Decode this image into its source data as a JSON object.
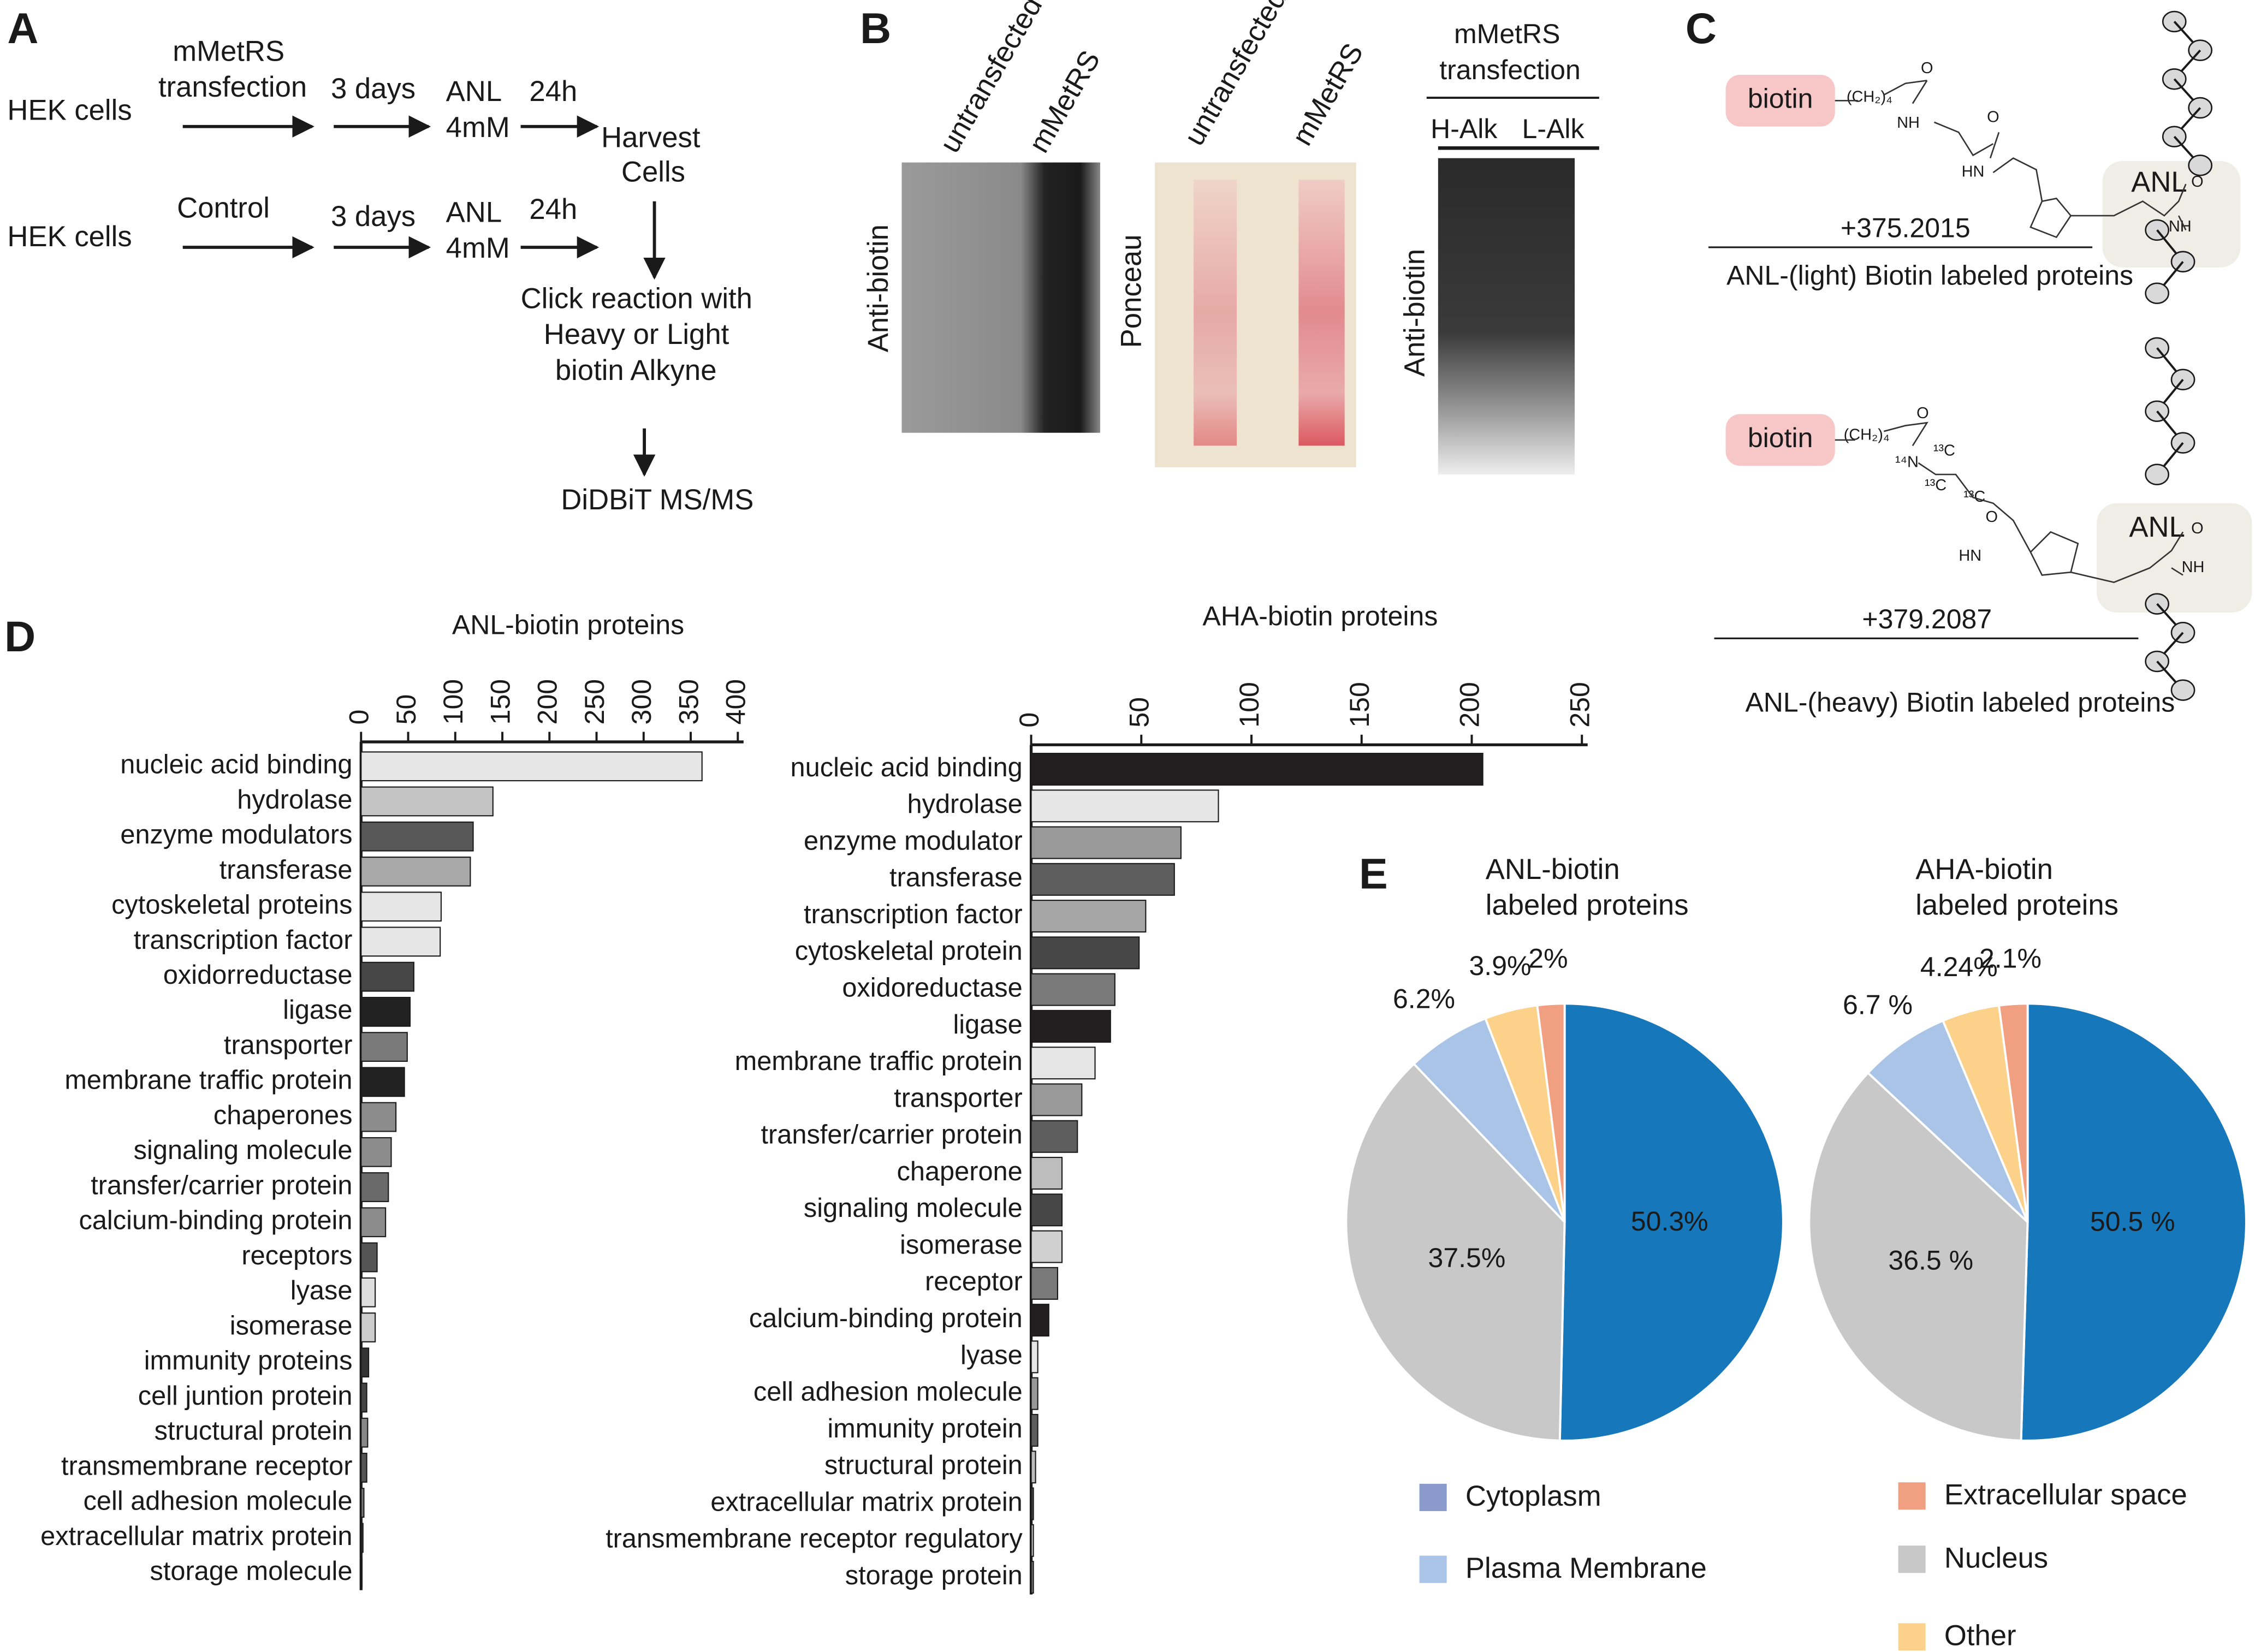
{
  "panel_labels": [
    "A",
    "B",
    "C",
    "D",
    "E"
  ],
  "workflow": {
    "items": [
      "HEK cells",
      "mMetRS",
      "transfection",
      "3 days",
      "ANL",
      "4mM",
      "24h",
      "Harvest",
      "Cells",
      "HEK cells",
      "Control",
      "3 days",
      "ANL",
      "4mM",
      "24h",
      "Click reaction with",
      "Heavy or Light",
      "biotin Alkyne",
      "DiDBiT MS/MS"
    ]
  },
  "blots": {
    "items": [
      "untransfected",
      "mMetRS",
      "Anti-biotin",
      "untransfected",
      "mMetRS",
      "Ponceau",
      "mMetRS",
      "transfection",
      "H-Alk",
      "L-Alk",
      "Anti-biotin"
    ]
  },
  "chemistry": {
    "items": [
      "biotin",
      "ANL",
      "+375.2015",
      "ANL-(light) Biotin labeled proteins",
      "biotin",
      "ANL",
      "+379.2087",
      "ANL-(heavy) Biotin labeled proteins"
    ],
    "atoms": [
      "(CH₂)₄",
      "O",
      "NH",
      "O",
      "HN",
      "O",
      "NH",
      "(CH₂)₄",
      "O",
      "¹⁴N",
      "¹³C",
      "¹³C",
      "¹³C",
      "O",
      "HN",
      "O",
      "NH"
    ]
  },
  "chart_data": [
    {
      "type": "bar",
      "orientation": "horizontal",
      "title": "ANL-biotin proteins",
      "categories": [
        "nucleic acid binding",
        "hydrolase",
        "enzyme modulators",
        "transferase",
        "cytoskeletal proteins",
        "transcription factor",
        "oxidorreductase",
        "ligase",
        "transporter",
        "membrane traffic protein",
        "chaperones",
        "signaling molecule",
        "transfer/carrier protein",
        "calcium-binding protein",
        "receptors",
        "lyase",
        "isomerase",
        "immunity proteins",
        "cell juntion protein",
        "structural protein",
        "transmembrane receptor",
        "cell adhesion molecule",
        "extracellular matrix protein",
        "storage molecule"
      ],
      "values": [
        362,
        140,
        119,
        116,
        85,
        84,
        56,
        52,
        49,
        46,
        37,
        32,
        29,
        26,
        17,
        15,
        15,
        8,
        6,
        7,
        6,
        3,
        2,
        1
      ],
      "colors": [
        "#e6e6e6",
        "#c4c4c4",
        "#585858",
        "#a8a8a8",
        "#e6e6e6",
        "#e6e6e6",
        "#474747",
        "#222222",
        "#7a7a7a",
        "#222222",
        "#8c8c8c",
        "#8c8c8c",
        "#6a6a6a",
        "#8c8c8c",
        "#555555",
        "#dddddd",
        "#cccccc",
        "#333333",
        "#444444",
        "#888888",
        "#555555",
        "#777777",
        "#333333",
        "#333333"
      ],
      "xlim": [
        0,
        400
      ],
      "xticks": [
        0,
        50,
        100,
        150,
        200,
        250,
        300,
        350,
        400
      ]
    },
    {
      "type": "bar",
      "orientation": "horizontal",
      "title": "AHA-biotin proteins",
      "categories": [
        "nucleic acid binding",
        "hydrolase",
        "enzyme modulator",
        "transferase",
        "transcription factor",
        "cytoskeletal protein",
        "oxidoreductase",
        "ligase",
        "membrane traffic protein",
        "transporter",
        "transfer/carrier protein",
        "chaperone",
        "signaling molecule",
        "isomerase",
        "receptor",
        "calcium-binding protein",
        "lyase",
        "cell adhesion molecule",
        "immunity protein",
        "structural protein",
        "extracellular matrix protein",
        "transmembrane receptor regulatory",
        "storage protein"
      ],
      "values": [
        205,
        85,
        68,
        65,
        52,
        49,
        38,
        36,
        29,
        23,
        21,
        14,
        14,
        14,
        12,
        8,
        3,
        3,
        3,
        2,
        1,
        1,
        1
      ],
      "colors": [
        "#231f20",
        "#e6e6e6",
        "#999999",
        "#5e5e5e",
        "#a6a6a6",
        "#474747",
        "#7a7a7a",
        "#231f20",
        "#e6e6e6",
        "#999999",
        "#5e5e5e",
        "#bdbdbd",
        "#474747",
        "#d0d0d0",
        "#7a7a7a",
        "#231f20",
        "#e6e6e6",
        "#999999",
        "#5e5e5e",
        "#bdbdbd",
        "#474747",
        "#d0d0d0",
        "#7a7a7a"
      ],
      "xlim": [
        0,
        250
      ],
      "xticks": [
        0,
        50,
        100,
        150,
        200,
        250
      ]
    },
    {
      "type": "pie",
      "title": [
        "ANL-biotin",
        "labeled proteins"
      ],
      "values": [
        50.3,
        37.5,
        6.2,
        3.9,
        2
      ],
      "value_labels": [
        "50.3%",
        "37.5%",
        "6.2%",
        "3.9%",
        "2%"
      ],
      "colors": [
        "#1777bb",
        "#c8c8c8",
        "#a9c4e6",
        "#fcd28a",
        "#f0a080"
      ],
      "legend": {
        "names": [
          "Cytoplasm",
          "Plasma Membrane",
          "Extracellular space",
          "Nucleus",
          "Other"
        ],
        "colors": [
          "#8a9acb",
          "#a9c4e6",
          "#f0a080",
          "#c8c8c8",
          "#fcd28a"
        ]
      }
    },
    {
      "type": "pie",
      "title": [
        "AHA-biotin",
        "labeled proteins"
      ],
      "values": [
        50.5,
        36.5,
        6.7,
        4.24,
        2.1
      ],
      "value_labels": [
        "50.5 %",
        "36.5 %",
        "6.7 %",
        "4.24%",
        "2.1%"
      ],
      "colors": [
        "#1777bb",
        "#c8c8c8",
        "#a9c4e6",
        "#fcd28a",
        "#f0a080"
      ]
    }
  ]
}
